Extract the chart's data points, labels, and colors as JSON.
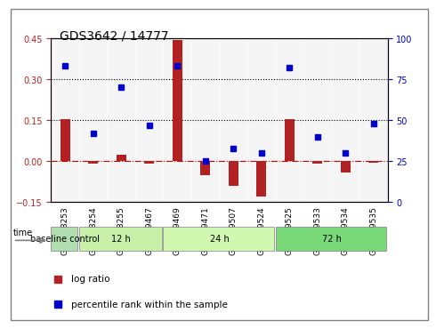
{
  "title": "GDS3642 / 14777",
  "categories": [
    "GSM268253",
    "GSM268254",
    "GSM268255",
    "GSM269467",
    "GSM269469",
    "GSM269471",
    "GSM269507",
    "GSM269524",
    "GSM269525",
    "GSM269533",
    "GSM269534",
    "GSM269535"
  ],
  "log_ratio": [
    0.155,
    -0.01,
    0.025,
    -0.01,
    0.445,
    -0.05,
    -0.09,
    -0.13,
    0.155,
    -0.01,
    -0.04,
    -0.005
  ],
  "percentile_rank": [
    83,
    42,
    70,
    47,
    83,
    25,
    33,
    30,
    82,
    40,
    30,
    48
  ],
  "groups": [
    {
      "label": "baseline control",
      "start": 0,
      "end": 1,
      "color": "#90EE90"
    },
    {
      "label": "12 h",
      "start": 1,
      "end": 4,
      "color": "#90EE90"
    },
    {
      "label": "24 h",
      "start": 4,
      "end": 8,
      "color": "#90EE90"
    },
    {
      "label": "72 h",
      "start": 8,
      "end": 12,
      "color": "#90EE90"
    }
  ],
  "group_colors": [
    "#b8e8b8",
    "#c8f0c8",
    "#d8f8d8",
    "#a0e8a0"
  ],
  "ylim_left": [
    -0.15,
    0.45
  ],
  "ylim_right": [
    0,
    100
  ],
  "yticks_left": [
    -0.15,
    0.0,
    0.15,
    0.3,
    0.45
  ],
  "yticks_right": [
    0,
    25,
    50,
    75,
    100
  ],
  "bar_color": "#b22222",
  "dot_color": "#0000cc",
  "hline_color": "#cc0000",
  "dotted_line_vals": [
    0.15,
    0.3
  ],
  "zero_line_color": "#cc0000"
}
